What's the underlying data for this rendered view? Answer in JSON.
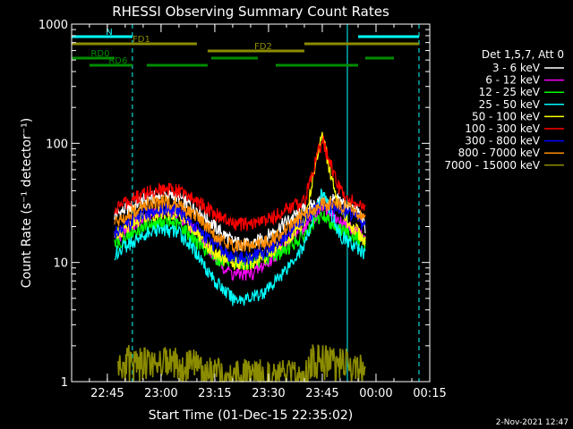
{
  "chart_data": {
    "type": "line",
    "title": "RHESSI Observing Summary Count Rates",
    "xlabel": "Start Time (01-Dec-15 22:35:02)",
    "ylabel": "Count Rate (s⁻¹ detector⁻¹)",
    "y_scale": "log",
    "ylim": [
      1,
      1000
    ],
    "xlim": [
      "22:35:02",
      "00:15"
    ],
    "x_ticks": [
      "22:45",
      "23:00",
      "23:15",
      "23:30",
      "23:45",
      "00:00",
      "00:15"
    ],
    "y_ticks": [
      "1",
      "10",
      "100",
      "1000"
    ],
    "legend_title": "Det 1,5,7, Att 0",
    "legend_position": "right",
    "footer_date": "2-Nov-2021 12:47",
    "series": [
      {
        "name": "3 - 6 keV",
        "color": "#ffffff",
        "x": [
          "22:47",
          "22:55",
          "23:00",
          "23:05",
          "23:10",
          "23:15",
          "23:20",
          "23:25",
          "23:30",
          "23:35",
          "23:40",
          "23:45",
          "23:50",
          "23:55",
          "23:57"
        ],
        "values": [
          25,
          33,
          37,
          35,
          28,
          20,
          15,
          14,
          17,
          22,
          28,
          33,
          33,
          27,
          20
        ]
      },
      {
        "name": "6 - 12 keV",
        "color": "#ff00ff",
        "x": [
          "22:47",
          "22:55",
          "23:00",
          "23:05",
          "23:10",
          "23:15",
          "23:20",
          "23:25",
          "23:30",
          "23:35",
          "23:40",
          "23:45",
          "23:50",
          "23:55",
          "23:57"
        ],
        "values": [
          16,
          24,
          27,
          25,
          18,
          11,
          8,
          8,
          10,
          15,
          20,
          28,
          22,
          18,
          15
        ]
      },
      {
        "name": "12 - 25 keV",
        "color": "#00ff00",
        "x": [
          "22:47",
          "22:55",
          "23:00",
          "23:05",
          "23:10",
          "23:15",
          "23:20",
          "23:25",
          "23:30",
          "23:35",
          "23:40",
          "23:45",
          "23:50",
          "23:55",
          "23:57"
        ],
        "values": [
          14,
          20,
          22,
          21,
          15,
          11,
          10,
          10,
          11,
          13,
          17,
          25,
          19,
          16,
          14
        ]
      },
      {
        "name": "25 - 50 keV",
        "color": "#00ffff",
        "x": [
          "22:47",
          "22:55",
          "23:00",
          "23:05",
          "23:10",
          "23:15",
          "23:20",
          "23:25",
          "23:30",
          "23:35",
          "23:40",
          "23:45",
          "23:50",
          "23:55",
          "23:57"
        ],
        "values": [
          12,
          17,
          19,
          18,
          12,
          7,
          5,
          5,
          6,
          9,
          14,
          40,
          17,
          13,
          12
        ]
      },
      {
        "name": "50 - 100 keV",
        "color": "#ffff00",
        "x": [
          "22:47",
          "22:55",
          "23:00",
          "23:05",
          "23:10",
          "23:15",
          "23:20",
          "23:25",
          "23:30",
          "23:35",
          "23:40",
          "23:45",
          "23:47",
          "23:50",
          "23:55",
          "23:57"
        ],
        "values": [
          17,
          24,
          27,
          25,
          18,
          12,
          10,
          10,
          12,
          16,
          22,
          130,
          60,
          25,
          18,
          15
        ]
      },
      {
        "name": "100 - 300 keV",
        "color": "#ff0000",
        "x": [
          "22:47",
          "22:55",
          "23:00",
          "23:05",
          "23:10",
          "23:15",
          "23:20",
          "23:25",
          "23:30",
          "23:35",
          "23:40",
          "23:45",
          "23:47",
          "23:50",
          "23:55",
          "23:57"
        ],
        "values": [
          28,
          38,
          42,
          40,
          33,
          26,
          21,
          21,
          23,
          28,
          33,
          110,
          70,
          40,
          30,
          28
        ]
      },
      {
        "name": "300 - 800 keV",
        "color": "#0000ff",
        "x": [
          "22:47",
          "22:55",
          "23:00",
          "23:05",
          "23:10",
          "23:15",
          "23:20",
          "23:25",
          "23:30",
          "23:35",
          "23:40",
          "23:45",
          "23:50",
          "23:55",
          "23:57"
        ],
        "values": [
          18,
          26,
          28,
          27,
          20,
          14,
          11,
          11,
          13,
          17,
          24,
          30,
          29,
          24,
          20
        ]
      },
      {
        "name": "800 - 7000 keV",
        "color": "#ff8c00",
        "x": [
          "22:47",
          "22:55",
          "23:00",
          "23:05",
          "23:10",
          "23:15",
          "23:20",
          "23:25",
          "23:30",
          "23:35",
          "23:40",
          "23:45",
          "23:50",
          "23:55",
          "23:57"
        ],
        "values": [
          22,
          30,
          33,
          31,
          24,
          17,
          14,
          14,
          15,
          19,
          26,
          31,
          31,
          26,
          23
        ]
      },
      {
        "name": "7000 - 15000 keV",
        "color": "#8c8c00",
        "x": [
          "22:48",
          "22:50",
          "22:55",
          "23:00",
          "23:05",
          "23:10",
          "23:12",
          "23:40",
          "23:42",
          "23:45",
          "23:50",
          "23:55",
          "23:57"
        ],
        "values": [
          1.4,
          1.8,
          1.7,
          1.8,
          1.7,
          1.6,
          1.4,
          1.3,
          1.8,
          1.9,
          1.7,
          1.6,
          1.3
        ]
      }
    ],
    "bands": [
      {
        "name": "N",
        "color": "#00ffff",
        "level": 0,
        "intervals": [
          [
            "22:35:02",
            "22:52"
          ],
          [
            "23:55",
            "00:12"
          ]
        ]
      },
      {
        "name": "FD1",
        "color": "#8c8c00",
        "level": 1,
        "intervals": [
          [
            "22:35:02",
            "23:10"
          ],
          [
            "23:40",
            "00:12"
          ]
        ]
      },
      {
        "name": "FD2",
        "color": "#8c8c00",
        "level": 2,
        "intervals": [
          [
            "23:13",
            "23:40"
          ]
        ]
      },
      {
        "name": "RD0",
        "color": "#008c00",
        "level": 3,
        "intervals": [
          [
            "22:35:02",
            "22:47"
          ],
          [
            "23:14",
            "23:27"
          ],
          [
            "23:57",
            "00:05"
          ]
        ]
      },
      {
        "name": "RD6",
        "color": "#008c00",
        "level": 4,
        "intervals": [
          [
            "22:40",
            "22:52"
          ],
          [
            "22:56",
            "23:13"
          ],
          [
            "23:32",
            "23:55"
          ]
        ]
      }
    ],
    "event_lines": {
      "solid": [
        "22:35:02",
        "23:52"
      ],
      "dashed": [
        "22:52",
        "00:12"
      ]
    }
  }
}
